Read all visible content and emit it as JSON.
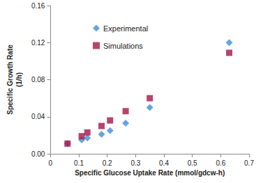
{
  "chart_data": {
    "type": "scatter",
    "x_label": "Specific Glucose Uptake Rate (mmol/gdcw-h)",
    "y_label": "Specific Growth Rate\n(1/h)",
    "series": [
      {
        "name": "Experimental",
        "color": "#3f8ed6",
        "marker": "diamond",
        "x": [
          0.06,
          0.11,
          0.13,
          0.18,
          0.21,
          0.265,
          0.35,
          0.63
        ],
        "values": [
          0.011,
          0.015,
          0.017,
          0.021,
          0.025,
          0.033,
          0.05,
          0.12
        ]
      },
      {
        "name": "Simulations",
        "color": "#a3174a",
        "marker": "square",
        "x": [
          0.06,
          0.11,
          0.13,
          0.18,
          0.21,
          0.265,
          0.35,
          0.63
        ],
        "values": [
          0.011,
          0.019,
          0.023,
          0.03,
          0.036,
          0.046,
          0.06,
          0.109
        ]
      }
    ],
    "xlim": [
      0,
      0.7
    ],
    "xticks": [
      0,
      0.1,
      0.2,
      0.3,
      0.4,
      0.5,
      0.6,
      0.7
    ],
    "ylim": [
      0,
      0.16
    ],
    "yticks": [
      {
        "value": 0,
        "label": "0.00"
      },
      {
        "value": 0.04,
        "label": "0.04"
      },
      {
        "value": 0.08,
        "label": "0.08"
      },
      {
        "value": 0.12,
        "label": "0.12"
      },
      {
        "value": 0.16,
        "label": "0.16"
      }
    ],
    "grid": false,
    "legend": "upper left"
  }
}
